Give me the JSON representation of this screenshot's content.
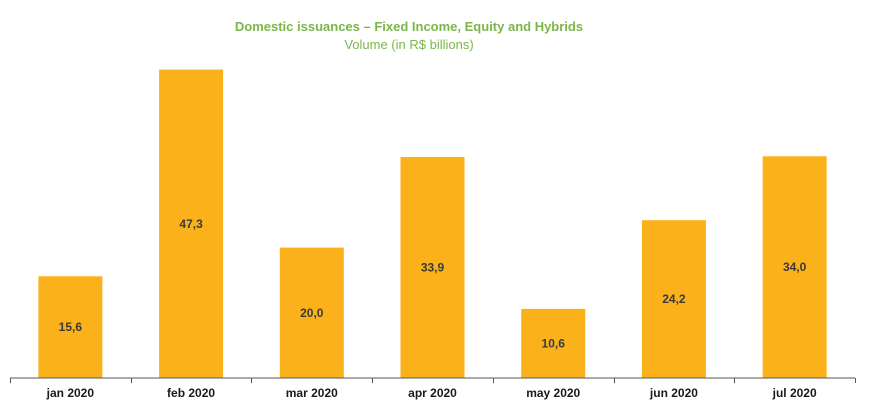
{
  "chart_data": {
    "type": "bar",
    "title": "Domestic issuances – Fixed Income, Equity and Hybrids",
    "subtitle": "Volume (in R$ billions)",
    "categories": [
      "jan 2020",
      "feb 2020",
      "mar 2020",
      "apr 2020",
      "may 2020",
      "jun 2020",
      "jul 2020"
    ],
    "values": [
      15.6,
      47.3,
      20.0,
      33.9,
      10.6,
      24.2,
      34.0
    ],
    "value_labels": [
      "15,6",
      "47,3",
      "20,0",
      "33,9",
      "10,6",
      "24,2",
      "34,0"
    ],
    "xlabel": "",
    "ylabel": "",
    "ylim": [
      0,
      48
    ],
    "grid": false,
    "legend": "none",
    "colors": {
      "bar": "#FBB11A",
      "title": "#7AB648",
      "axis": "#555555"
    }
  }
}
